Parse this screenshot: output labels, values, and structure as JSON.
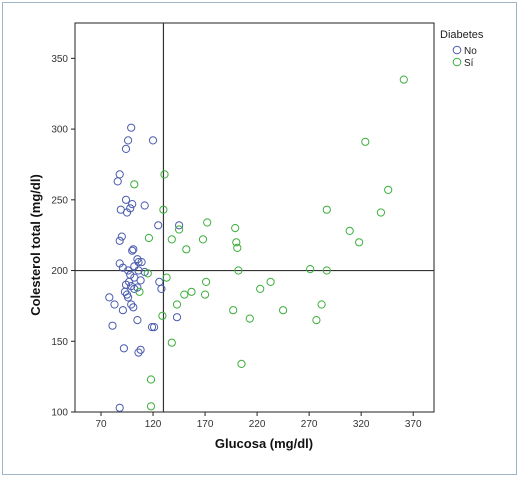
{
  "chart_data": {
    "type": "scatter",
    "title": "",
    "xlabel": "Glucosa (mg/dl)",
    "ylabel": "Colesterol total (mg/dl)",
    "xlim": [
      45,
      390
    ],
    "ylim": [
      100,
      375
    ],
    "xticks": [
      70,
      120,
      170,
      220,
      270,
      320,
      370
    ],
    "yticks": [
      100,
      150,
      200,
      250,
      300,
      350
    ],
    "grid": false,
    "reference_lines": {
      "x": 130,
      "y": 200
    },
    "legend": {
      "title": "Diabetes",
      "placement": "top-right-outside"
    },
    "series": [
      {
        "name": "No",
        "color": "#4a5cae",
        "points": [
          [
            99,
            301
          ],
          [
            96,
            292
          ],
          [
            120,
            292
          ],
          [
            94,
            286
          ],
          [
            88,
            268
          ],
          [
            86,
            263
          ],
          [
            100,
            247
          ],
          [
            94,
            250
          ],
          [
            89,
            243
          ],
          [
            95,
            241
          ],
          [
            98,
            244
          ],
          [
            112,
            246
          ],
          [
            125,
            232
          ],
          [
            90,
            224
          ],
          [
            88,
            221
          ],
          [
            100,
            214
          ],
          [
            101,
            215
          ],
          [
            105,
            208
          ],
          [
            106,
            206
          ],
          [
            109,
            206
          ],
          [
            88,
            205
          ],
          [
            91,
            202
          ],
          [
            102,
            203
          ],
          [
            106,
            200
          ],
          [
            112,
            199
          ],
          [
            96,
            200
          ],
          [
            98,
            197
          ],
          [
            102,
            195
          ],
          [
            108,
            193
          ],
          [
            126,
            192
          ],
          [
            97,
            192
          ],
          [
            94,
            190
          ],
          [
            99,
            189
          ],
          [
            105,
            188
          ],
          [
            128,
            187
          ],
          [
            102,
            187
          ],
          [
            93,
            185
          ],
          [
            95,
            183
          ],
          [
            96,
            181
          ],
          [
            78,
            181
          ],
          [
            83,
            176
          ],
          [
            99,
            176
          ],
          [
            101,
            174
          ],
          [
            91,
            172
          ],
          [
            105,
            165
          ],
          [
            81,
            161
          ],
          [
            119,
            160
          ],
          [
            121,
            160
          ],
          [
            106,
            142
          ],
          [
            108,
            144
          ],
          [
            92,
            145
          ],
          [
            88,
            103
          ],
          [
            145,
            232
          ],
          [
            143,
            167
          ]
        ]
      },
      {
        "name": "Sí",
        "color": "#3cae3c",
        "points": [
          [
            361,
            335
          ],
          [
            324,
            291
          ],
          [
            131,
            268
          ],
          [
            102,
            261
          ],
          [
            346,
            257
          ],
          [
            287,
            243
          ],
          [
            130,
            243
          ],
          [
            339,
            241
          ],
          [
            309,
            228
          ],
          [
            318,
            220
          ],
          [
            172,
            234
          ],
          [
            199,
            230
          ],
          [
            145,
            229
          ],
          [
            200,
            220
          ],
          [
            138,
            222
          ],
          [
            168,
            222
          ],
          [
            201,
            216
          ],
          [
            152,
            215
          ],
          [
            116,
            223
          ],
          [
            202,
            200
          ],
          [
            271,
            201
          ],
          [
            287,
            200
          ],
          [
            133,
            195
          ],
          [
            171,
            192
          ],
          [
            233,
            192
          ],
          [
            223,
            187
          ],
          [
            157,
            185
          ],
          [
            150,
            183
          ],
          [
            170,
            183
          ],
          [
            107,
            185
          ],
          [
            115,
            198
          ],
          [
            197,
            172
          ],
          [
            245,
            172
          ],
          [
            213,
            166
          ],
          [
            129,
            168
          ],
          [
            143,
            176
          ],
          [
            282,
            176
          ],
          [
            277,
            165
          ],
          [
            205,
            134
          ],
          [
            138,
            149
          ],
          [
            118,
            123
          ],
          [
            118,
            104
          ]
        ]
      }
    ]
  }
}
